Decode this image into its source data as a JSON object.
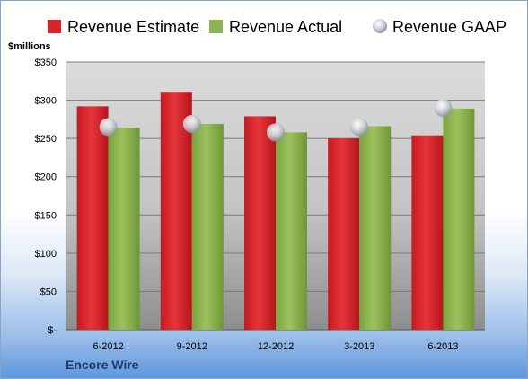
{
  "chart_data": {
    "type": "bar",
    "title": "",
    "ylabel": "$millions",
    "categories": [
      "6-2012",
      "9-2012",
      "12-2012",
      "3-2013",
      "6-2013"
    ],
    "series": [
      {
        "name": "Revenue Estimate",
        "type": "bar",
        "color": "#d8232a",
        "values": [
          292,
          311,
          279,
          250,
          254
        ]
      },
      {
        "name": "Revenue Actual",
        "type": "bar",
        "color": "#8db451",
        "values": [
          264,
          269,
          258,
          266,
          289
        ]
      },
      {
        "name": "Revenue GAAP",
        "type": "scatter",
        "color": "#c9cdd6",
        "values": [
          265,
          269,
          258,
          265,
          290
        ]
      }
    ],
    "y_ticks": [
      {
        "value": 0,
        "label": "$-"
      },
      {
        "value": 50,
        "label": "$50"
      },
      {
        "value": 100,
        "label": "$100"
      },
      {
        "value": 150,
        "label": "$150"
      },
      {
        "value": 200,
        "label": "$200"
      },
      {
        "value": 250,
        "label": "$250"
      },
      {
        "value": 300,
        "label": "$300"
      },
      {
        "value": 350,
        "label": "$350"
      }
    ],
    "ylim": [
      0,
      350
    ],
    "grid": true,
    "legend_position": "top"
  },
  "company": "Encore Wire"
}
